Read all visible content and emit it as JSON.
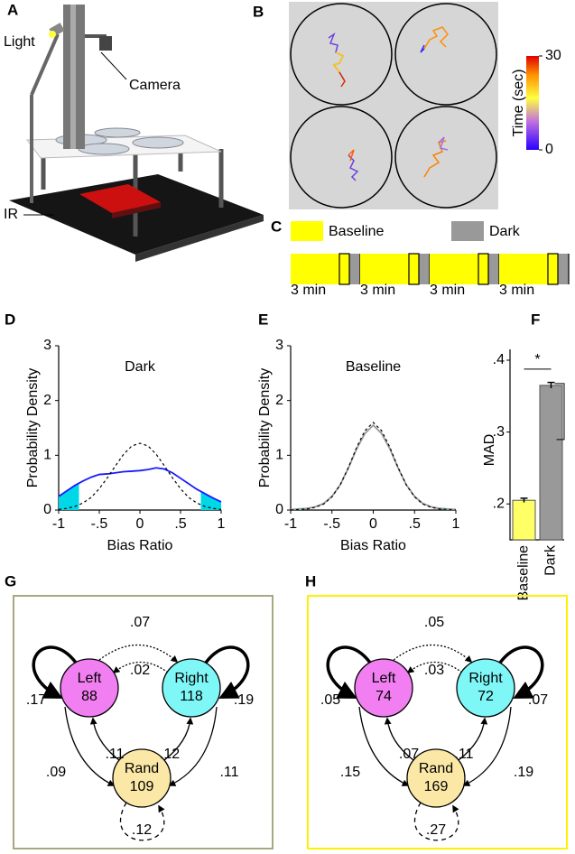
{
  "panel_labels": [
    "A",
    "B",
    "C",
    "D",
    "E",
    "F",
    "G",
    "H"
  ],
  "panel_a": {
    "labels": [
      "Light",
      "Camera",
      "IR"
    ]
  },
  "panel_b": {
    "colorbar_label": "Time (sec)",
    "colorbar_ticks": [
      0,
      30
    ]
  },
  "panel_c": {
    "legend": [
      {
        "name": "Baseline",
        "color": "#ffff00"
      },
      {
        "name": "Dark",
        "color": "#999999"
      }
    ],
    "segments": [
      "3 min",
      "3 min",
      "3 min",
      "3 min"
    ]
  },
  "chart_data": [
    {
      "type": "line",
      "title": "Dark",
      "x_label": "Bias Ratio",
      "y_label": "Probability Density",
      "x": [
        -1,
        -0.9,
        -0.8,
        -0.7,
        -0.6,
        -0.5,
        -0.4,
        -0.3,
        -0.2,
        -0.1,
        0,
        0.1,
        0.2,
        0.3,
        0.4,
        0.5,
        0.6,
        0.7,
        0.8,
        0.9,
        1
      ],
      "series": [
        {
          "color": "#1a1aff",
          "values": [
            0.25,
            0.35,
            0.45,
            0.53,
            0.6,
            0.65,
            0.66,
            0.68,
            0.7,
            0.71,
            0.72,
            0.74,
            0.77,
            0.75,
            0.68,
            0.58,
            0.48,
            0.38,
            0.3,
            0.22,
            0.15
          ]
        },
        {
          "color": "#000000",
          "dash": true,
          "values": [
            0.01,
            0.03,
            0.065,
            0.13,
            0.23,
            0.39,
            0.59,
            0.81,
            1.02,
            1.17,
            1.22,
            1.17,
            1.02,
            0.81,
            0.59,
            0.39,
            0.23,
            0.13,
            0.065,
            0.03,
            0.01
          ]
        }
      ],
      "shade": {
        "color": "#00d8e8",
        "ranges": [
          [
            -1,
            -0.75
          ],
          [
            0.75,
            1
          ]
        ]
      },
      "xlim": [
        -1,
        1
      ],
      "ylim": [
        0,
        3
      ],
      "xticks": [
        -1,
        {
          "value": -0.5,
          "label": "-.5"
        },
        0,
        {
          "value": 0.5,
          "label": ".5"
        },
        1
      ],
      "yticks": [
        0,
        1,
        2,
        3
      ]
    },
    {
      "type": "line",
      "title": "Baseline",
      "x_label": "Bias Ratio",
      "y_label": "Probability Density",
      "x": [
        -1,
        -0.9,
        -0.8,
        -0.7,
        -0.6,
        -0.5,
        -0.4,
        -0.3,
        -0.2,
        -0.1,
        0,
        0.1,
        0.2,
        0.3,
        0.4,
        0.5,
        0.6,
        0.7,
        0.8,
        0.9,
        1
      ],
      "series": [
        {
          "color": "#999999",
          "values": [
            0.01,
            0.02,
            0.03,
            0.06,
            0.12,
            0.25,
            0.46,
            0.77,
            1.12,
            1.4,
            1.55,
            1.4,
            1.12,
            0.77,
            0.46,
            0.25,
            0.12,
            0.06,
            0.03,
            0.02,
            0.01
          ]
        },
        {
          "color": "#000000",
          "dash": true,
          "values": [
            0.0,
            0.01,
            0.02,
            0.05,
            0.11,
            0.24,
            0.46,
            0.78,
            1.15,
            1.45,
            1.6,
            1.45,
            1.15,
            0.78,
            0.46,
            0.24,
            0.11,
            0.05,
            0.02,
            0.01,
            0.0
          ]
        }
      ],
      "shade": {
        "color": "#00d8e8",
        "ranges": [
          [
            -1,
            -0.85
          ],
          [
            0.85,
            1
          ]
        ]
      },
      "xlim": [
        -1,
        1
      ],
      "ylim": [
        0,
        3
      ],
      "xticks": [
        -1,
        {
          "value": -0.5,
          "label": "-.5"
        },
        0,
        {
          "value": 0.5,
          "label": ".5"
        },
        1
      ],
      "yticks": [
        0,
        1,
        2,
        3
      ]
    },
    {
      "type": "bar",
      "y_label": "MAD",
      "annotation": "*",
      "categories": [
        "Baseline",
        "Dark"
      ],
      "values": [
        0.205,
        0.365
      ],
      "errors": [
        0.003,
        0.004
      ],
      "colors": [
        "#ffff66",
        "#999999"
      ],
      "ylim": [
        0.15,
        0.4
      ],
      "yticks": [
        {
          "value": 0.2,
          "label": ".2"
        },
        {
          "value": 0.3,
          "label": ".3"
        },
        {
          "value": 0.4,
          "label": ".4"
        }
      ]
    }
  ],
  "panel_g": {
    "border_color": "#a8a880",
    "nodes": [
      {
        "label": "Left",
        "count": 88,
        "color": "#f27ff2"
      },
      {
        "label": "Right",
        "count": 118,
        "color": "#7ff7f7"
      },
      {
        "label": "Rand",
        "count": 109,
        "color": "#fbe8a6"
      }
    ],
    "edge_labels": [
      ".17",
      ".07",
      ".02",
      ".19",
      ".09",
      ".11",
      ".12",
      ".11",
      ".12"
    ]
  },
  "panel_h": {
    "border_color": "#fff200",
    "nodes": [
      {
        "label": "Left",
        "count": 74,
        "color": "#f27ff2"
      },
      {
        "label": "Right",
        "count": 72,
        "color": "#7ff7f7"
      },
      {
        "label": "Rand",
        "count": 169,
        "color": "#fbe8a6"
      }
    ],
    "edge_labels": [
      ".05",
      ".05",
      ".03",
      ".07",
      ".15",
      ".07",
      ".11",
      ".19",
      ".27"
    ]
  }
}
